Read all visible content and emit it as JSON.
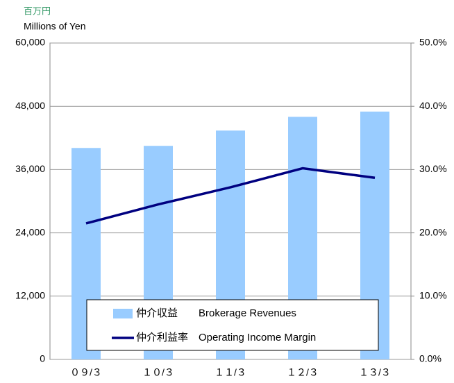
{
  "chart_data": {
    "type": "bar_line",
    "unit_label_ja": "百万円",
    "unit_label": "Millions of Yen",
    "categories": [
      "０９/３",
      "１０/３",
      "１１/３",
      "１２/３",
      "１３/３"
    ],
    "series": [
      {
        "name": "仲介収益　　Brokerage Revenues",
        "type": "bar",
        "color": "#99ccff",
        "values": [
          40100,
          40500,
          43400,
          46000,
          47000
        ]
      },
      {
        "name": "仲介利益率　Operating Income Margin",
        "type": "line",
        "axis": "y2",
        "color": "#000080",
        "values": [
          21.5,
          24.5,
          27.2,
          30.2,
          28.7
        ]
      }
    ],
    "ylim": [
      0,
      60000
    ],
    "yticks": [
      0,
      {
        "value": 12000,
        "label": "12,000"
      },
      {
        "value": 24000,
        "label": "24,000"
      },
      {
        "value": 36000,
        "label": "36,000"
      },
      {
        "value": 48000,
        "label": "48,000"
      },
      {
        "value": 60000,
        "label": "60,000"
      }
    ],
    "y2lim": [
      0,
      50
    ],
    "y2ticks": [
      {
        "value": 0,
        "label": "0.0%"
      },
      {
        "value": 10,
        "label": "10.0%"
      },
      {
        "value": 20,
        "label": "20.0%"
      },
      {
        "value": 30,
        "label": "30.0%"
      },
      {
        "value": 40,
        "label": "40.0%"
      },
      {
        "value": 50,
        "label": "50.0%"
      }
    ],
    "grid": true
  }
}
